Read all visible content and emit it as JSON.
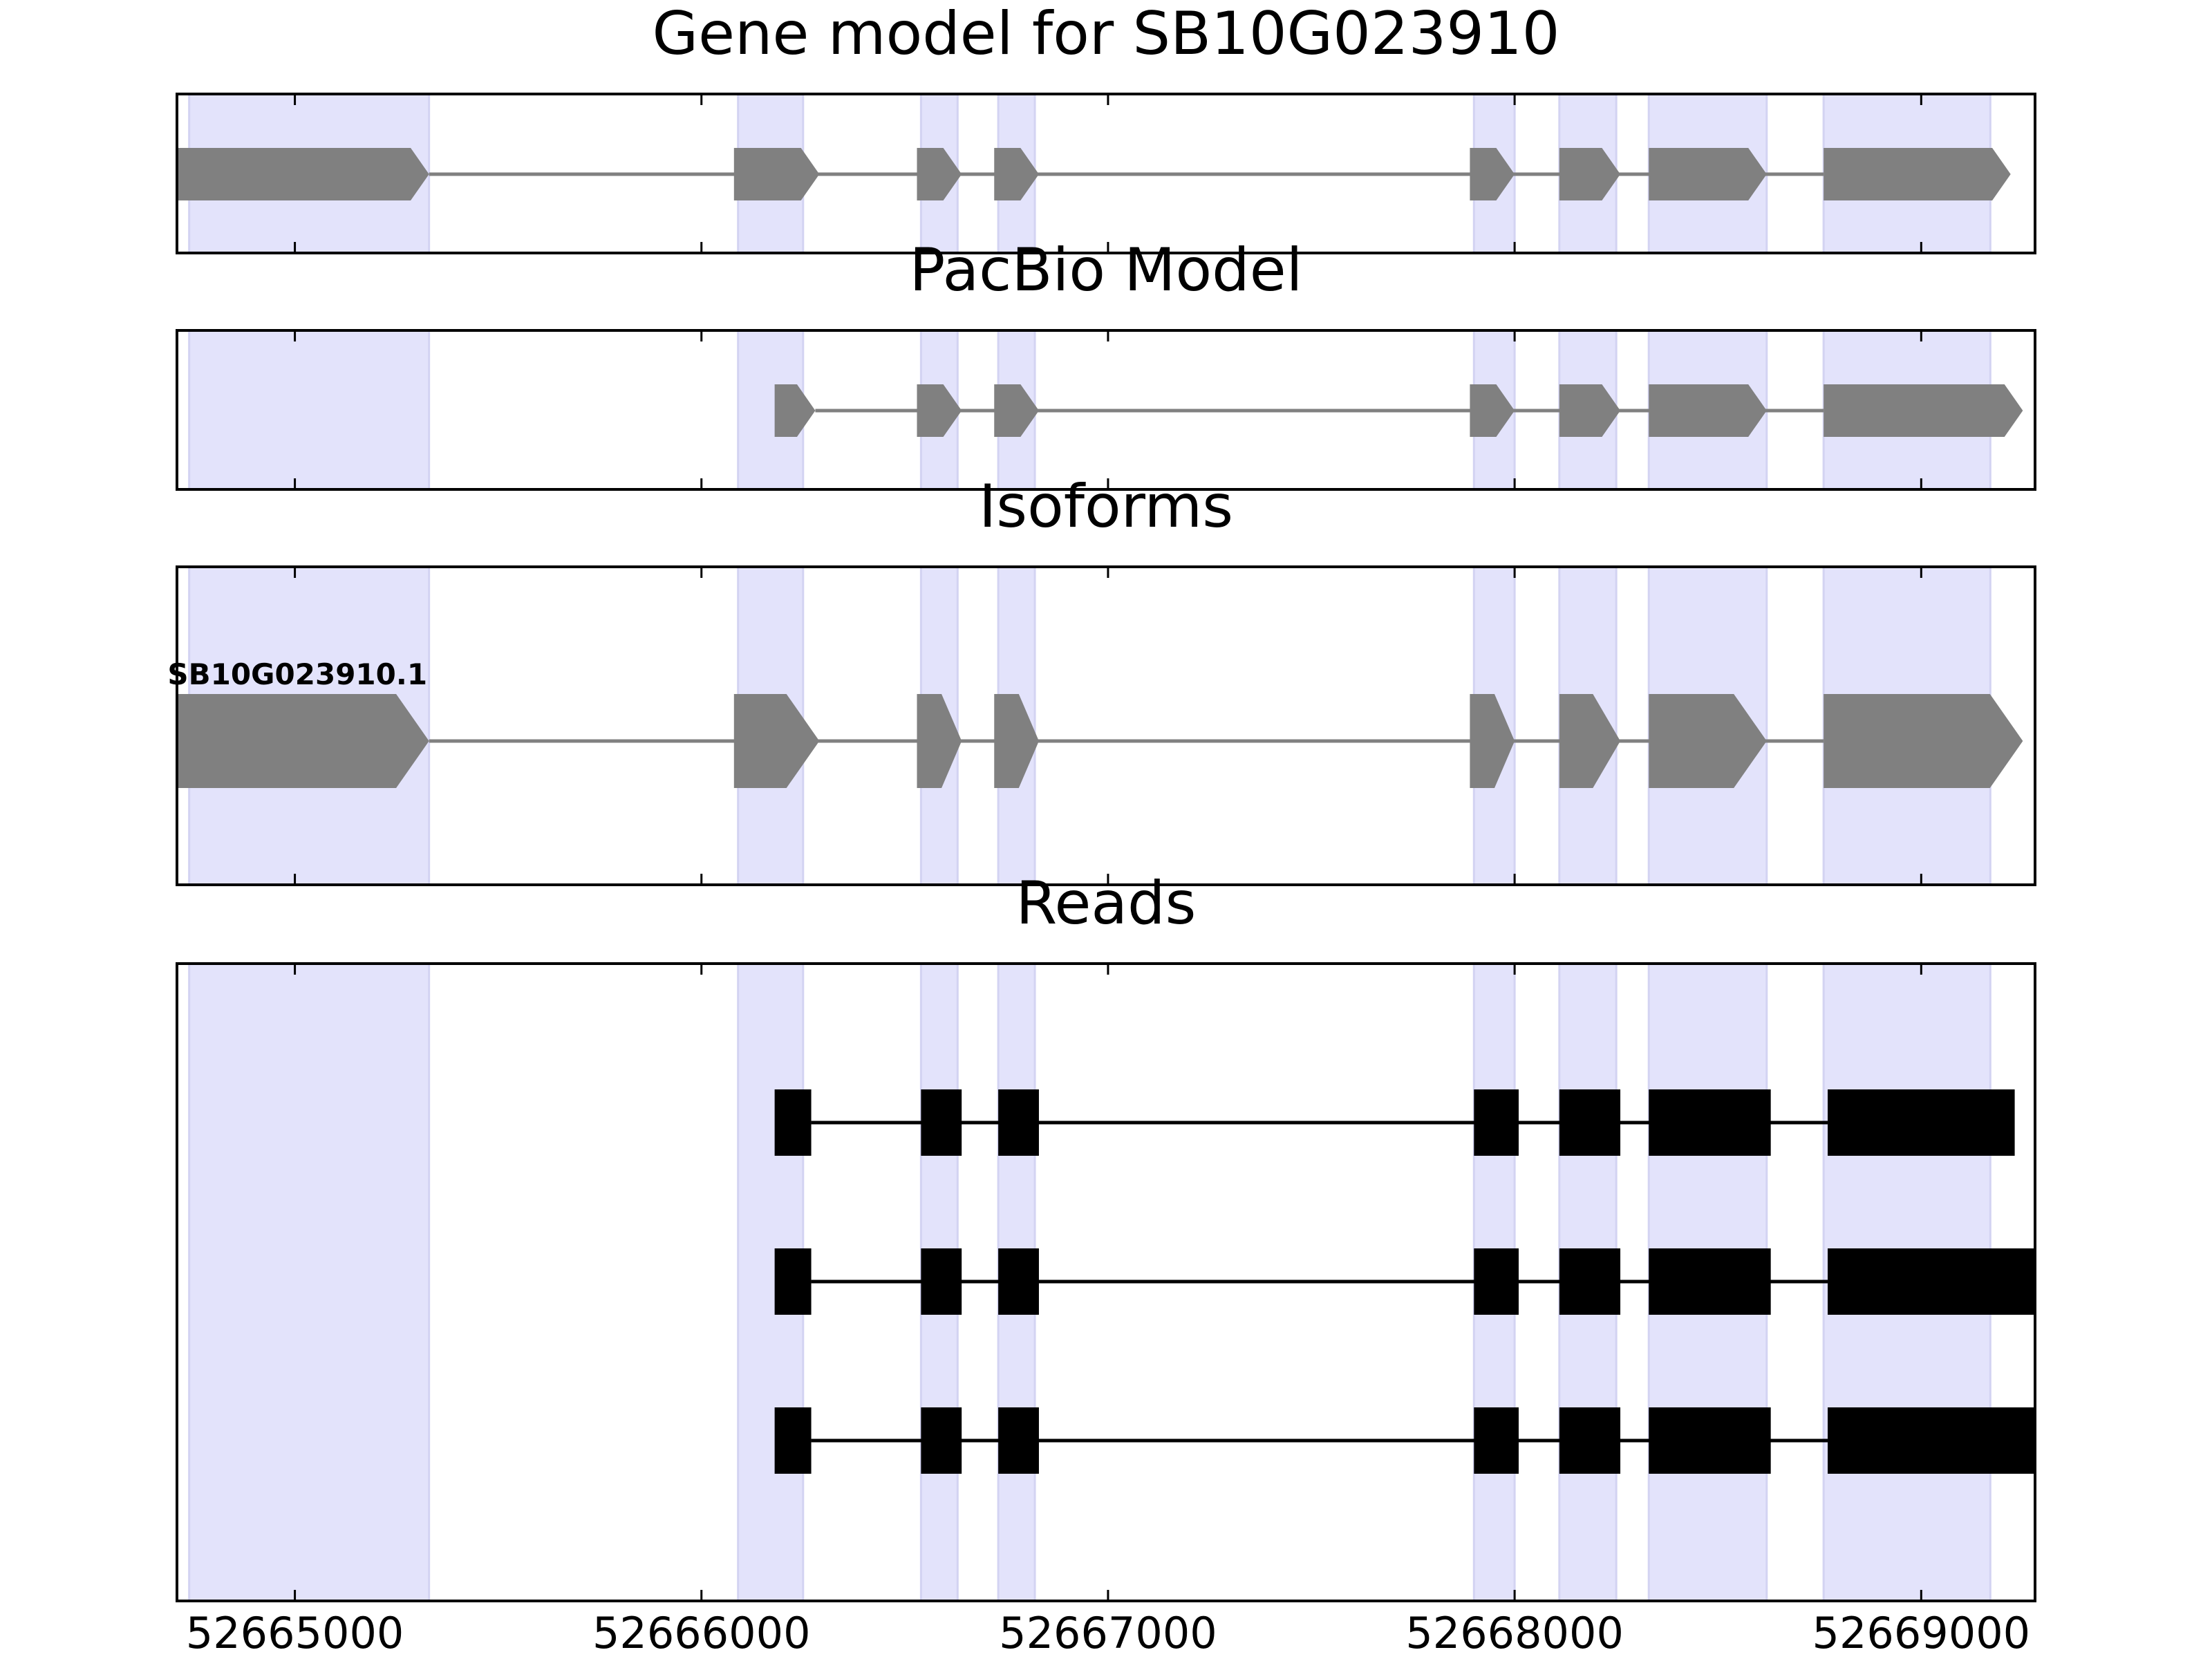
{
  "chart_data": [
    {
      "type": "gene_track",
      "title": "Gene model for SB10G023910",
      "xlim": [
        52664710,
        52669280
      ],
      "features": [
        {
          "name": "SB10G023910.1",
          "show_label": false,
          "strand": "+",
          "style": "arrow",
          "exons": [
            [
              52664680,
              52665330
            ],
            [
              52666080,
              52666290
            ],
            [
              52666530,
              52666640
            ],
            [
              52666720,
              52666830
            ],
            [
              52667890,
              52668000
            ],
            [
              52668110,
              52668260
            ],
            [
              52668330,
              52668620
            ],
            [
              52668760,
              52669220
            ]
          ]
        }
      ]
    },
    {
      "type": "gene_track",
      "title": "PacBio Model",
      "xlim": [
        52664710,
        52669280
      ],
      "features": [
        {
          "name": "",
          "show_label": false,
          "strand": "+",
          "style": "arrow",
          "exons": [
            [
              52666180,
              52666280
            ],
            [
              52666530,
              52666640
            ],
            [
              52666720,
              52666830
            ],
            [
              52667890,
              52668000
            ],
            [
              52668110,
              52668260
            ],
            [
              52668330,
              52668620
            ],
            [
              52668760,
              52669250
            ]
          ]
        }
      ]
    },
    {
      "type": "gene_track",
      "title": "Isoforms",
      "xlim": [
        52664710,
        52669280
      ],
      "features": [
        {
          "name": "SB10G023910.1",
          "show_label": true,
          "strand": "+",
          "style": "arrow",
          "exons": [
            [
              52664680,
              52665330
            ],
            [
              52666080,
              52666290
            ],
            [
              52666530,
              52666640
            ],
            [
              52666720,
              52666830
            ],
            [
              52667890,
              52668000
            ],
            [
              52668110,
              52668260
            ],
            [
              52668330,
              52668620
            ],
            [
              52668760,
              52669250
            ]
          ]
        }
      ]
    },
    {
      "type": "gene_track",
      "title": "Reads",
      "xlim": [
        52664710,
        52669280
      ],
      "features": [
        {
          "name": "",
          "show_label": false,
          "style": "block",
          "exons": [
            [
              52666180,
              52666270
            ],
            [
              52666540,
              52666640
            ],
            [
              52666730,
              52666830
            ],
            [
              52667900,
              52668010
            ],
            [
              52668110,
              52668260
            ],
            [
              52668330,
              52668630
            ],
            [
              52668770,
              52669230
            ]
          ]
        },
        {
          "name": "",
          "show_label": false,
          "style": "block",
          "exons": [
            [
              52666180,
              52666270
            ],
            [
              52666540,
              52666640
            ],
            [
              52666730,
              52666830
            ],
            [
              52667900,
              52668010
            ],
            [
              52668110,
              52668260
            ],
            [
              52668330,
              52668630
            ],
            [
              52668770,
              52669290
            ]
          ]
        },
        {
          "name": "",
          "show_label": false,
          "style": "block",
          "exons": [
            [
              52666180,
              52666270
            ],
            [
              52666540,
              52666640
            ],
            [
              52666730,
              52666830
            ],
            [
              52667900,
              52668010
            ],
            [
              52668110,
              52668260
            ],
            [
              52668330,
              52668630
            ],
            [
              52668770,
              52669290
            ]
          ]
        }
      ]
    }
  ],
  "highlight_regions": [
    [
      52664740,
      52665330
    ],
    [
      52666090,
      52666250
    ],
    [
      52666540,
      52666630
    ],
    [
      52666730,
      52666820
    ],
    [
      52667900,
      52668000
    ],
    [
      52668110,
      52668250
    ],
    [
      52668330,
      52668620
    ],
    [
      52668760,
      52669170
    ]
  ],
  "x_ticks": [
    52665000,
    52666000,
    52667000,
    52668000,
    52669000
  ],
  "x_tick_labels": [
    "52665000",
    "52666000",
    "52667000",
    "52668000",
    "52669000"
  ],
  "colors": {
    "highlight": "#e3e3fb",
    "highlight_edge": "#d3d3f2",
    "model_feature": "#808080",
    "read_feature": "#000000",
    "frame": "#000000"
  }
}
